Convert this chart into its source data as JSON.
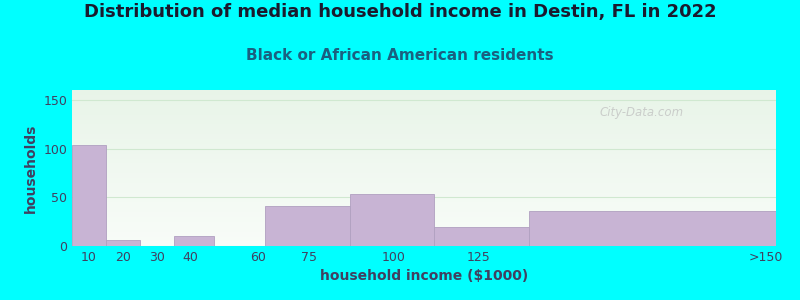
{
  "title": "Distribution of median household income in Destin, FL in 2022",
  "subtitle": "Black or African American residents",
  "xlabel": "household income ($1000)",
  "ylabel": "households",
  "background_color": "#00FFFF",
  "plot_bg_top_color": "#e8f4e8",
  "plot_bg_bottom_color": "#f8fcf8",
  "bar_color": "#c8b4d4",
  "bar_edge_color": "#b0a0c0",
  "title_color": "#1a1a2e",
  "subtitle_color": "#1a6080",
  "axis_label_color": "#404060",
  "tick_color": "#404060",
  "grid_color": "#d0e8d0",
  "ylim": [
    0,
    160
  ],
  "yticks": [
    0,
    50,
    100,
    150
  ],
  "bar_left_edges": [
    5,
    15,
    25,
    35,
    47,
    62,
    87,
    112,
    140
  ],
  "bar_widths": [
    10,
    10,
    10,
    12,
    15,
    25,
    25,
    28,
    73
  ],
  "bar_heights": [
    104,
    6,
    0,
    10,
    0,
    41,
    53,
    20,
    36
  ],
  "xtick_positions": [
    10,
    20,
    30,
    40,
    60,
    75,
    100,
    125,
    210
  ],
  "xtick_labels": [
    "10",
    "20",
    "30",
    "40",
    "60",
    "75",
    "100",
    "125",
    ">150"
  ],
  "xlim": [
    5,
    213
  ],
  "watermark": "City-Data.com",
  "title_fontsize": 13,
  "subtitle_fontsize": 11,
  "label_fontsize": 10,
  "tick_fontsize": 9
}
